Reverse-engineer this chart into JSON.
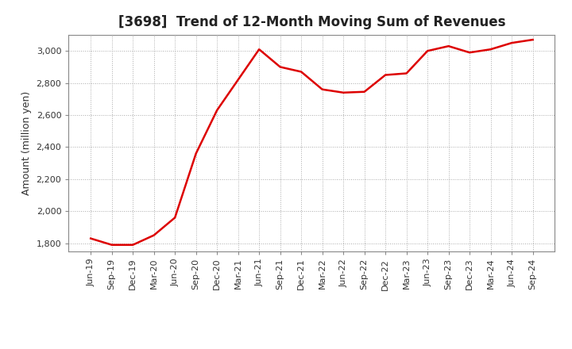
{
  "title": "[3698]  Trend of 12-Month Moving Sum of Revenues",
  "ylabel": "Amount (million yen)",
  "background_color": "#ffffff",
  "grid_color": "#aaaaaa",
  "line_color": "#dd0000",
  "x_labels": [
    "Jun-19",
    "Sep-19",
    "Dec-19",
    "Mar-20",
    "Jun-20",
    "Sep-20",
    "Dec-20",
    "Mar-21",
    "Jun-21",
    "Sep-21",
    "Dec-21",
    "Mar-22",
    "Jun-22",
    "Sep-22",
    "Dec-22",
    "Mar-23",
    "Jun-23",
    "Sep-23",
    "Dec-23",
    "Mar-24",
    "Jun-24",
    "Sep-24"
  ],
  "values": [
    1830,
    1790,
    1790,
    1850,
    1960,
    2360,
    2630,
    2820,
    3010,
    2900,
    2870,
    2760,
    2740,
    2745,
    2850,
    2860,
    3000,
    3030,
    2990,
    3010,
    3050,
    3070
  ],
  "ylim_min": 1750,
  "ylim_max": 3100,
  "yticks": [
    1800,
    2000,
    2200,
    2400,
    2600,
    2800,
    3000
  ],
  "title_fontsize": 12,
  "axis_fontsize": 9,
  "tick_fontsize": 8
}
